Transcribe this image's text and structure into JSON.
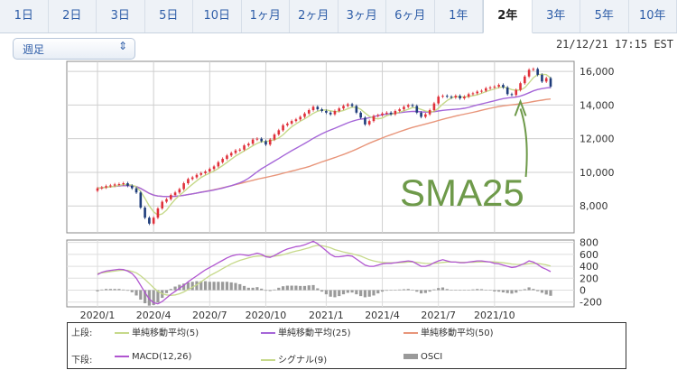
{
  "tabs": [
    {
      "label": "1日",
      "active": false
    },
    {
      "label": "2日",
      "active": false
    },
    {
      "label": "3日",
      "active": false
    },
    {
      "label": "5日",
      "active": false
    },
    {
      "label": "10日",
      "active": false
    },
    {
      "label": "1ヶ月",
      "active": false
    },
    {
      "label": "2ヶ月",
      "active": false
    },
    {
      "label": "3ヶ月",
      "active": false
    },
    {
      "label": "6ヶ月",
      "active": false
    },
    {
      "label": "1年",
      "active": false
    },
    {
      "label": "2年",
      "active": true
    },
    {
      "label": "3年",
      "active": false
    },
    {
      "label": "5年",
      "active": false
    },
    {
      "label": "10年",
      "active": false
    }
  ],
  "selector": {
    "value": "週足"
  },
  "timestamp": "21/12/21 17:15 EST",
  "annotation": {
    "text": "SMA25",
    "color": "#6e9a4a"
  },
  "legend": {
    "upper_label": "上段:",
    "lower_label": "下段:",
    "upper_items": [
      {
        "label": "単純移動平均(5)",
        "color": "#c6d98a"
      },
      {
        "label": "単純移動平均(25)",
        "color": "#a566d8"
      },
      {
        "label": "単純移動平均(50)",
        "color": "#e8957a"
      }
    ],
    "lower_items": [
      {
        "label": "MACD(12,26)",
        "color": "#b055d0"
      },
      {
        "label": "シグナル(9)",
        "color": "#c6d98a"
      },
      {
        "label": "OSCI",
        "color": "#9a9a9a"
      }
    ]
  },
  "chart_data": [
    {
      "type": "candlestick",
      "x_tick_labels": [
        "2020/1",
        "2020/4",
        "2020/7",
        "2020/10",
        "2021/1",
        "2021/4",
        "2021/7",
        "2021/10"
      ],
      "x_tick_index": [
        0,
        13,
        26,
        39,
        53,
        66,
        79,
        92
      ],
      "y_tick_labels": [
        "16,000",
        "14,000",
        "12,000",
        "10,000",
        "8,000"
      ],
      "ylim": [
        6400,
        16600
      ],
      "yticks": [
        16000,
        14000,
        12000,
        10000,
        8000
      ],
      "grid": true,
      "close": [
        9050,
        9100,
        9180,
        9220,
        9280,
        9300,
        9350,
        9200,
        9050,
        8800,
        7900,
        7300,
        6950,
        7300,
        7850,
        8250,
        8400,
        8650,
        8800,
        9000,
        9350,
        9600,
        9700,
        9850,
        9950,
        10050,
        10200,
        10350,
        10600,
        10800,
        11000,
        11150,
        11300,
        11350,
        11600,
        11700,
        11950,
        12000,
        11850,
        11650,
        11950,
        12250,
        12500,
        12800,
        12900,
        13050,
        13150,
        13300,
        13500,
        13700,
        13900,
        13750,
        13650,
        13550,
        13450,
        13650,
        13800,
        13950,
        14050,
        13950,
        13550,
        13250,
        12850,
        13050,
        13350,
        13400,
        13500,
        13550,
        13450,
        13650,
        13750,
        13900,
        14000,
        13950,
        13550,
        13300,
        13450,
        13700,
        14100,
        14500,
        14550,
        14500,
        14450,
        14550,
        14400,
        14500,
        14650,
        14700,
        14800,
        14850,
        15000,
        15050,
        15100,
        15200,
        15050,
        14650,
        14600,
        14900,
        15300,
        15700,
        16100,
        16150,
        15800,
        15400,
        15600,
        15100
      ],
      "open": [
        8900,
        9050,
        9100,
        9180,
        9220,
        9280,
        9300,
        9350,
        9200,
        9050,
        8800,
        7900,
        7300,
        6950,
        7300,
        7850,
        8250,
        8400,
        8650,
        8800,
        9000,
        9350,
        9600,
        9700,
        9850,
        9950,
        10050,
        10200,
        10350,
        10600,
        10800,
        11000,
        11150,
        11300,
        11350,
        11600,
        11700,
        11950,
        12000,
        11850,
        11650,
        11950,
        12250,
        12500,
        12800,
        12900,
        13050,
        13150,
        13300,
        13500,
        13700,
        13900,
        13750,
        13650,
        13550,
        13450,
        13650,
        13800,
        13950,
        14050,
        13950,
        13550,
        13250,
        12850,
        13050,
        13350,
        13400,
        13500,
        13550,
        13450,
        13650,
        13750,
        13900,
        14000,
        13950,
        13550,
        13300,
        13450,
        13700,
        14100,
        14500,
        14550,
        14500,
        14450,
        14550,
        14400,
        14500,
        14650,
        14700,
        14800,
        14850,
        15000,
        15050,
        15100,
        15200,
        15050,
        14650,
        14600,
        14900,
        15300,
        15700,
        16100,
        16150,
        15800,
        15400,
        15600
      ],
      "series": [
        {
          "name": "単純移動平均(5)",
          "color": "#c6d98a"
        },
        {
          "name": "単純移動平均(25)",
          "color": "#a566d8"
        },
        {
          "name": "単純移動平均(50)",
          "color": "#e8957a"
        }
      ]
    },
    {
      "type": "line+bar",
      "y_tick_labels": [
        "800",
        "600",
        "400",
        "200",
        "0",
        "-200"
      ],
      "ylim": [
        -280,
        840
      ],
      "yticks": [
        800,
        600,
        400,
        200,
        0,
        -200
      ],
      "grid": true,
      "macd": [
        260,
        300,
        320,
        330,
        340,
        350,
        345,
        320,
        280,
        200,
        80,
        -40,
        -150,
        -210,
        -230,
        -190,
        -130,
        -70,
        -20,
        30,
        80,
        140,
        190,
        240,
        290,
        340,
        380,
        420,
        460,
        500,
        540,
        570,
        590,
        600,
        590,
        580,
        600,
        620,
        600,
        560,
        550,
        580,
        620,
        660,
        690,
        710,
        730,
        740,
        760,
        790,
        820,
        780,
        720,
        660,
        600,
        560,
        560,
        570,
        580,
        570,
        520,
        470,
        420,
        400,
        400,
        420,
        440,
        450,
        450,
        460,
        470,
        480,
        490,
        480,
        440,
        400,
        400,
        420,
        460,
        490,
        510,
        490,
        470,
        470,
        460,
        460,
        470,
        480,
        490,
        490,
        480,
        470,
        450,
        440,
        420,
        400,
        380,
        390,
        420,
        450,
        490,
        470,
        430,
        380,
        350,
        310
      ],
      "signal": [
        280,
        290,
        300,
        310,
        320,
        330,
        335,
        330,
        315,
        290,
        240,
        180,
        110,
        40,
        -20,
        -60,
        -80,
        -90,
        -80,
        -60,
        -30,
        10,
        50,
        90,
        140,
        190,
        240,
        280,
        320,
        360,
        400,
        440,
        470,
        500,
        520,
        540,
        560,
        570,
        575,
        570,
        565,
        570,
        580,
        595,
        615,
        635,
        655,
        670,
        690,
        710,
        735,
        750,
        745,
        730,
        710,
        680,
        660,
        640,
        625,
        610,
        590,
        570,
        540,
        510,
        490,
        475,
        465,
        460,
        458,
        458,
        460,
        465,
        470,
        472,
        466,
        455,
        448,
        445,
        448,
        455,
        465,
        472,
        472,
        470,
        468,
        466,
        466,
        468,
        471,
        474,
        476,
        476,
        472,
        466,
        458,
        449,
        438,
        432,
        430,
        434,
        444,
        450,
        447,
        437,
        424,
        405
      ],
      "osci": [
        -20,
        10,
        20,
        20,
        20,
        20,
        10,
        -10,
        -35,
        -90,
        -160,
        -220,
        -260,
        -250,
        -210,
        -130,
        -50,
        20,
        60,
        90,
        110,
        130,
        140,
        150,
        150,
        150,
        140,
        140,
        140,
        140,
        140,
        130,
        120,
        100,
        70,
        40,
        40,
        50,
        25,
        -10,
        -15,
        10,
        40,
        65,
        75,
        75,
        75,
        70,
        70,
        80,
        85,
        30,
        -25,
        -70,
        -110,
        -120,
        -100,
        -70,
        -45,
        -40,
        -70,
        -100,
        -120,
        -110,
        -90,
        -55,
        -25,
        -10,
        -8,
        2,
        10,
        15,
        20,
        8,
        -26,
        -55,
        -48,
        -25,
        12,
        35,
        45,
        18,
        -2,
        0,
        -8,
        -6,
        4,
        12,
        19,
        16,
        4,
        -6,
        -22,
        -26,
        -38,
        -49,
        -58,
        -42,
        -10,
        16,
        46,
        20,
        -17,
        -44,
        -74,
        -95
      ],
      "series": [
        {
          "name": "MACD(12,26)",
          "color": "#b055d0"
        },
        {
          "name": "シグナル(9)",
          "color": "#c6d98a"
        },
        {
          "name": "OSCI",
          "color": "#9a9a9a"
        }
      ]
    }
  ]
}
